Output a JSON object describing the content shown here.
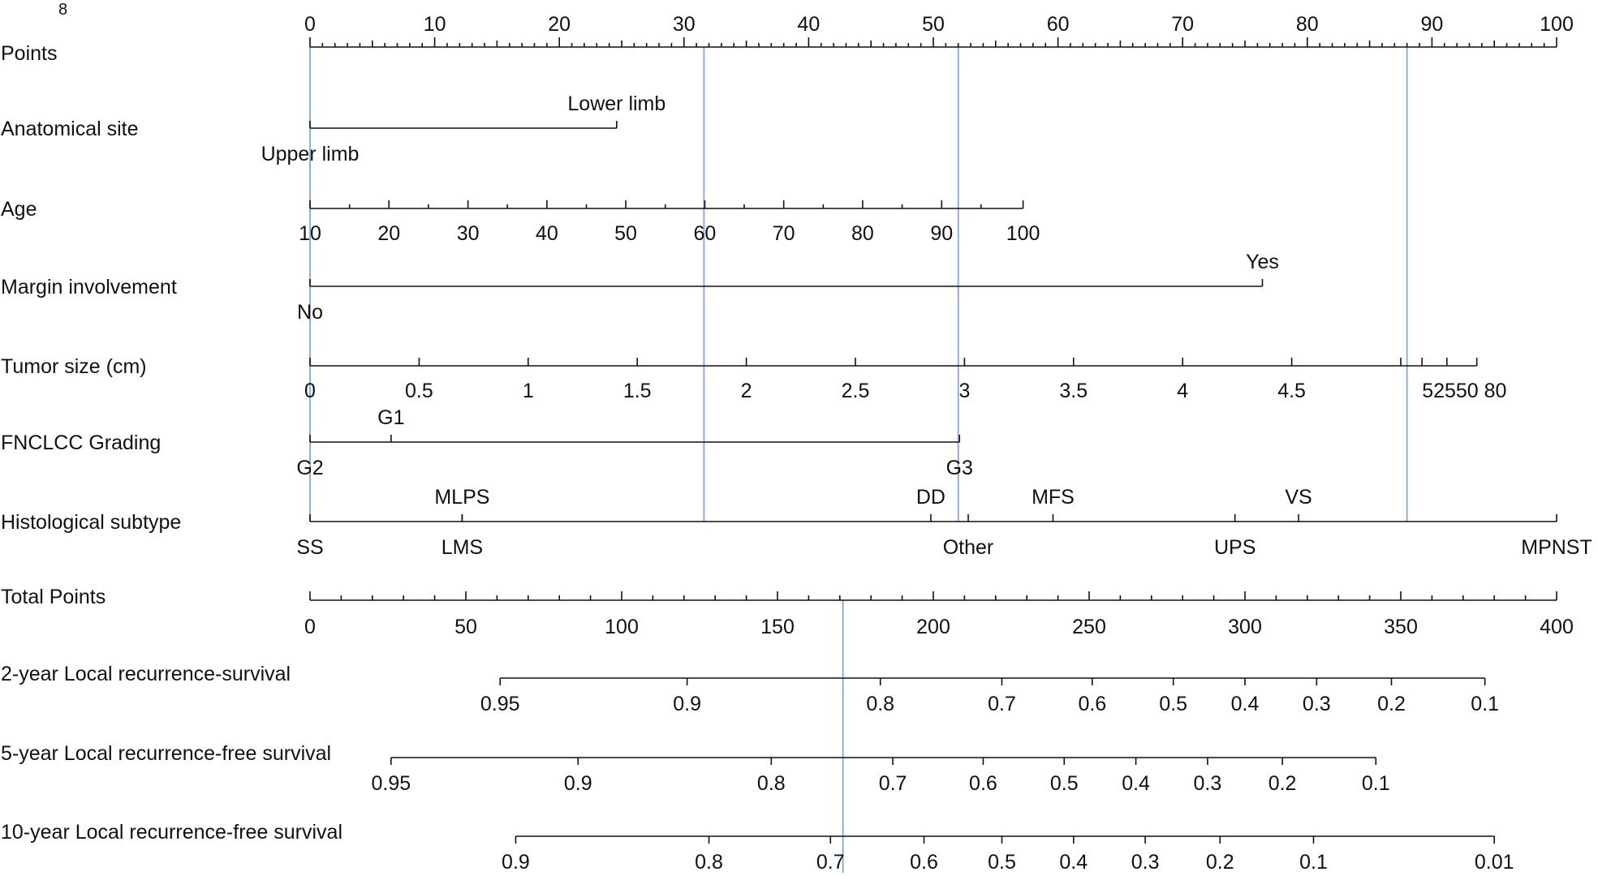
{
  "page_number": "8",
  "chart_data": {
    "type": "nomogram",
    "title": "",
    "colors": {
      "axis": "#111111",
      "guide": "#8db1d6"
    },
    "points": {
      "label": "Points",
      "min": 0,
      "max": 100,
      "major": [
        0,
        10,
        20,
        30,
        40,
        50,
        60,
        70,
        80,
        90,
        100
      ],
      "minor_step": 1,
      "mid_step": 5
    },
    "variables": [
      {
        "key": "site",
        "label": "Anatomical site",
        "kind": "categorical",
        "categories": [
          {
            "name": "Upper limb",
            "points": 0,
            "side": "below"
          },
          {
            "name": "Lower limb",
            "points": 24.6,
            "side": "above"
          }
        ]
      },
      {
        "key": "age",
        "label": "Age",
        "kind": "continuous",
        "ticks": [
          {
            "value": "10",
            "points": 0
          },
          {
            "value": "20",
            "points": 6.33
          },
          {
            "value": "30",
            "points": 12.67
          },
          {
            "value": "40",
            "points": 19.0
          },
          {
            "value": "50",
            "points": 25.33
          },
          {
            "value": "60",
            "points": 31.67
          },
          {
            "value": "70",
            "points": 38.0
          },
          {
            "value": "80",
            "points": 44.33
          },
          {
            "value": "90",
            "points": 50.67
          },
          {
            "value": "100",
            "points": 57.2
          }
        ],
        "minor_points": [
          3.17,
          9.5,
          15.83,
          22.17,
          28.5,
          34.83,
          41.17,
          47.5,
          53.83
        ]
      },
      {
        "key": "margin",
        "label": "Margin involvement",
        "kind": "categorical",
        "categories": [
          {
            "name": "No",
            "points": 0,
            "side": "below"
          },
          {
            "name": "Yes",
            "points": 76.4,
            "side": "above"
          }
        ]
      },
      {
        "key": "size",
        "label": "Tumor size (cm)",
        "kind": "continuous",
        "ticks": [
          {
            "value": "0",
            "points": 0
          },
          {
            "value": "0.5",
            "points": 8.75
          },
          {
            "value": "1",
            "points": 17.5
          },
          {
            "value": "1.5",
            "points": 26.25
          },
          {
            "value": "2",
            "points": 35.0
          },
          {
            "value": "2.5",
            "points": 43.75
          },
          {
            "value": "3",
            "points": 52.5
          },
          {
            "value": "3.5",
            "points": 61.25
          },
          {
            "value": "4",
            "points": 70.0
          },
          {
            "value": "4.5",
            "points": 78.75
          },
          {
            "value": "5",
            "points": 87.5
          },
          {
            "value": "25",
            "points": 89.2
          },
          {
            "value": "50",
            "points": 91.2
          },
          {
            "value": "80",
            "points": 93.6
          }
        ],
        "tick_label_text": "52550 80",
        "tick_label_points": 92.6
      },
      {
        "key": "grade",
        "label": "FNCLCC Grading",
        "kind": "categorical",
        "categories": [
          {
            "name": "G2",
            "points": 0,
            "side": "below"
          },
          {
            "name": "G1",
            "points": 6.5,
            "side": "above"
          },
          {
            "name": "G3",
            "points": 52.1,
            "side": "below"
          }
        ]
      },
      {
        "key": "subtype",
        "label": "Histological subtype",
        "kind": "categorical",
        "categories": [
          {
            "name": "SS",
            "points": 0,
            "side": "below"
          },
          {
            "name": "MLPS",
            "points": 12.2,
            "side": "above"
          },
          {
            "name": "LMS",
            "points": 12.2,
            "side": "below"
          },
          {
            "name": "DD",
            "points": 49.8,
            "side": "above"
          },
          {
            "name": "Other",
            "points": 52.8,
            "side": "below"
          },
          {
            "name": "MFS",
            "points": 59.6,
            "side": "above"
          },
          {
            "name": "UPS",
            "points": 74.2,
            "side": "below"
          },
          {
            "name": "VS",
            "points": 79.3,
            "side": "above"
          },
          {
            "name": "MPNST",
            "points": 100,
            "side": "below"
          }
        ]
      }
    ],
    "total_points": {
      "label": "Total Points",
      "min": 0,
      "max": 400,
      "major": [
        0,
        50,
        100,
        150,
        200,
        250,
        300,
        350,
        400
      ],
      "minor_step": 10
    },
    "outcomes": [
      {
        "key": "lr2",
        "label": "2-year Local recurrence-survival",
        "start_total": 61,
        "end_total": 377,
        "ticks": [
          {
            "value": "0.95",
            "total": 61
          },
          {
            "value": "0.9",
            "total": 121
          },
          {
            "value": "0.8",
            "total": 183
          },
          {
            "value": "0.7",
            "total": 222
          },
          {
            "value": "0.6",
            "total": 251
          },
          {
            "value": "0.5",
            "total": 277
          },
          {
            "value": "0.4",
            "total": 300
          },
          {
            "value": "0.3",
            "total": 323
          },
          {
            "value": "0.2",
            "total": 347
          },
          {
            "value": "0.1",
            "total": 377
          }
        ]
      },
      {
        "key": "lr5",
        "label": "5-year Local recurrence-free survival",
        "start_total": 26,
        "end_total": 342,
        "ticks": [
          {
            "value": "0.95",
            "total": 26
          },
          {
            "value": "0.9",
            "total": 86
          },
          {
            "value": "0.8",
            "total": 148
          },
          {
            "value": "0.7",
            "total": 187
          },
          {
            "value": "0.6",
            "total": 216
          },
          {
            "value": "0.5",
            "total": 242
          },
          {
            "value": "0.4",
            "total": 265
          },
          {
            "value": "0.3",
            "total": 288
          },
          {
            "value": "0.2",
            "total": 312
          },
          {
            "value": "0.1",
            "total": 342
          }
        ]
      },
      {
        "key": "lr10",
        "label": "10-year Local recurrence-free survival",
        "start_total": 66,
        "end_total": 380,
        "ticks": [
          {
            "value": "0.9",
            "total": 66
          },
          {
            "value": "0.8",
            "total": 128
          },
          {
            "value": "0.7",
            "total": 167
          },
          {
            "value": "0.6",
            "total": 197
          },
          {
            "value": "0.5",
            "total": 222
          },
          {
            "value": "0.4",
            "total": 245
          },
          {
            "value": "0.3",
            "total": 268
          },
          {
            "value": "0.2",
            "total": 292
          },
          {
            "value": "0.1",
            "total": 322
          },
          {
            "value": "0.01",
            "total": 380
          }
        ]
      }
    ],
    "guide_lines": [
      {
        "scale": "points",
        "value": 0
      },
      {
        "scale": "points",
        "value": 31.6
      },
      {
        "scale": "points",
        "value": 52.0
      },
      {
        "scale": "points",
        "value": 88.0
      },
      {
        "scale": "total",
        "value": 171
      }
    ]
  }
}
